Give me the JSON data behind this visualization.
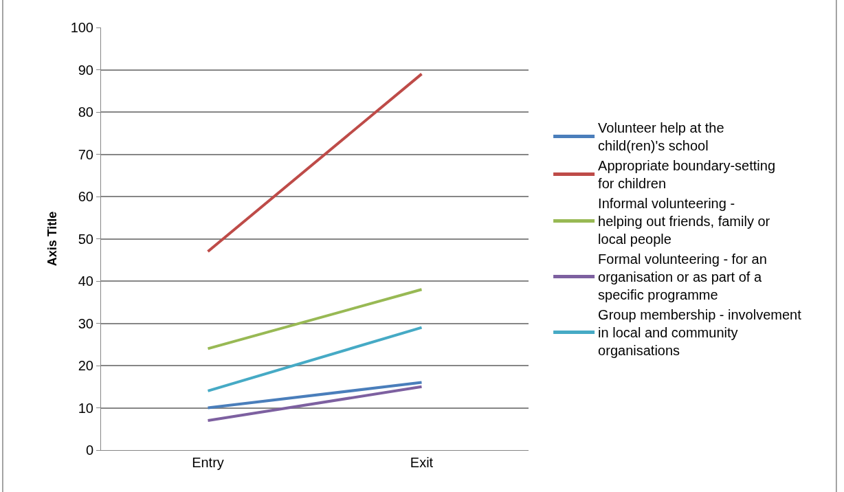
{
  "chart_data": {
    "type": "line",
    "ylabel": "Axis Title",
    "categories": [
      "Entry",
      "Exit"
    ],
    "series": [
      {
        "name": "Volunteer help at the child(ren)'s school",
        "color": "#4a7ebb",
        "values": [
          10,
          16
        ]
      },
      {
        "name": "Appropriate boundary-setting for children",
        "color": "#be4b48",
        "values": [
          47,
          89
        ]
      },
      {
        "name": "Informal volunteering - helping out friends, family or local people",
        "color": "#98b954",
        "values": [
          24,
          38
        ]
      },
      {
        "name": "Formal volunteering - for an organisation or as part of a specific programme",
        "color": "#7d60a0",
        "values": [
          7,
          15
        ]
      },
      {
        "name": "Group membership - involvement in local and community organisations",
        "color": "#46aac5",
        "values": [
          14,
          29
        ]
      }
    ],
    "ylim": [
      0,
      100
    ],
    "yticks": [
      0,
      10,
      20,
      30,
      40,
      50,
      60,
      70,
      80,
      90,
      100
    ],
    "grid": "y",
    "legend": "right",
    "marker": "none",
    "line_style": "solid"
  }
}
